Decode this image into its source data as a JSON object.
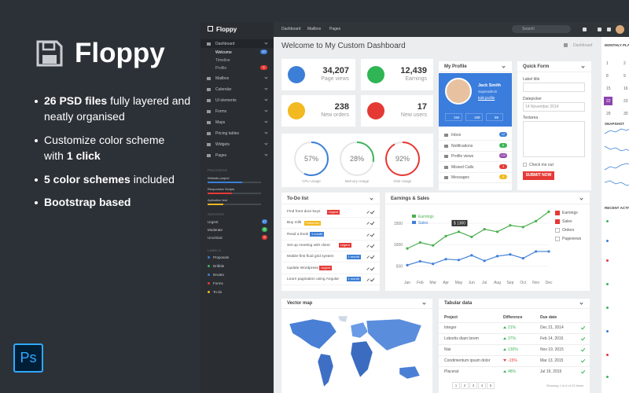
{
  "promo": {
    "brand": "Floppy",
    "bullets": [
      [
        {
          "strong": "26 PSD files"
        },
        {
          "text": "fully layered and neatly organised"
        }
      ],
      [
        {
          "text": "Customize color scheme with"
        },
        {
          "strong": "1 click"
        }
      ],
      [
        {
          "strong": "5 color schemes"
        },
        {
          "text": "included"
        }
      ],
      [
        {
          "strong": "Bootstrap based"
        }
      ]
    ],
    "app_badge": "Ps"
  },
  "topbar": {
    "brand": "Floppy",
    "nav": [
      "Dashboard",
      "Mailbox",
      "Pages"
    ],
    "search": "Search"
  },
  "sidebar": {
    "menu": [
      {
        "label": "Dashboard",
        "active": true,
        "children": [
          {
            "label": "Welcome",
            "badge": "10",
            "badge_color": "#3c7fd6"
          },
          {
            "label": "Timeline"
          },
          {
            "label": "Profile",
            "badge": "5",
            "badge_color": "#e53935"
          }
        ]
      },
      {
        "label": "Mailbox"
      },
      {
        "label": "Calendar"
      },
      {
        "label": "UI elements"
      },
      {
        "label": "Forms"
      },
      {
        "label": "Maps"
      },
      {
        "label": "Pricing tables"
      },
      {
        "label": "Widgets"
      },
      {
        "label": "Pages"
      }
    ],
    "progress_title": "PROGRESS",
    "progress": [
      {
        "label": "Website project",
        "value": 65,
        "color": "#3c7fd6"
      },
      {
        "label": "Responsive Scripts",
        "value": 45,
        "color": "#e53935"
      },
      {
        "label": "Aplication test",
        "value": 30,
        "color": "#f3b920"
      }
    ],
    "servers_title": "SERVERS",
    "servers": [
      {
        "label": "Urgent",
        "badge": "17",
        "color": "#3c7fd6"
      },
      {
        "label": "Moderate",
        "badge": "5",
        "color": "#3cb55a"
      },
      {
        "label": "Uncritical",
        "badge": "9",
        "color": "#e53935"
      }
    ],
    "labels_title": "LABELS",
    "labels": [
      {
        "label": "Proposals",
        "color": "#3c7fd6"
      },
      {
        "label": "Dribble",
        "color": "#3cb55a"
      },
      {
        "label": "Envato",
        "color": "#3c7fd6"
      },
      {
        "label": "Forms",
        "color": "#e53935"
      },
      {
        "label": "To-do",
        "color": "#f3b920"
      }
    ]
  },
  "header": {
    "title": "Welcome to My Custom Dashboard",
    "breadcrumb": "Dashboard"
  },
  "stats": [
    {
      "value": "34,207",
      "label": "Page views",
      "color": "#3c7fd6"
    },
    {
      "value": "12,439",
      "label": "Earnings",
      "color": "#2fb553"
    },
    {
      "value": "238",
      "label": "New orders",
      "color": "#f3b920"
    },
    {
      "value": "17",
      "label": "New users",
      "color": "#e53935"
    }
  ],
  "gauges": [
    {
      "value": 57,
      "label": "57%",
      "name": "CPU Usage",
      "color": "#3c7fd6"
    },
    {
      "value": 28,
      "label": "28%",
      "name": "Memory Usage",
      "color": "#3cb55a"
    },
    {
      "value": 92,
      "label": "92%",
      "name": "Disk Usage",
      "color": "#e53935"
    }
  ],
  "profile": {
    "title": "My Profile",
    "name": "Jack Smith",
    "role": "Superadmin",
    "edit": "Edit profile",
    "counts": [
      "154",
      "189",
      "95"
    ],
    "menu": [
      {
        "label": "Inbox",
        "badge": "12",
        "color": "#3c7fd6"
      },
      {
        "label": "Notifications",
        "badge": "8",
        "color": "#3cb55a"
      },
      {
        "label": "Profile views",
        "badge": "120",
        "color": "#8e44ad"
      },
      {
        "label": "Missed Calls",
        "badge": "3",
        "color": "#e53935"
      },
      {
        "label": "Messages",
        "badge": "6",
        "color": "#f3b920"
      }
    ]
  },
  "quick_form": {
    "title": "Quick Form",
    "label_title": "Label title",
    "datepicker": "Datepicker",
    "date": "14 November 2014",
    "textarea": "Textarea",
    "check": "Check me out",
    "submit": "SUBMIT NOW"
  },
  "todo": {
    "title": "To-Do list",
    "items": [
      {
        "text": "Find front door keys",
        "tag": "Urgent",
        "color": "#e53935"
      },
      {
        "text": "Buy milk",
        "tag": "Tomorrow",
        "color": "#f3b920"
      },
      {
        "text": "Read a book",
        "tag": "1 month",
        "color": "#3c7fd6"
      },
      {
        "text": "Set up meeting with client",
        "tag": "Urgent",
        "color": "#e53935"
      },
      {
        "text": "Mobile-first fluid grid system",
        "tag": "1 month",
        "color": "#3c7fd6"
      },
      {
        "text": "Update Wordpress",
        "tag": "Urgent",
        "color": "#e53935"
      },
      {
        "text": "Learn pagination using Angular",
        "tag": "1 month",
        "color": "#3c7fd6"
      }
    ]
  },
  "chart_data": {
    "type": "line",
    "title": "Earnings & Sales",
    "categories": [
      "Jan",
      "Feb",
      "Mar",
      "Apr",
      "May",
      "Jun",
      "Jul",
      "Aug",
      "Sep",
      "Oct",
      "Nov",
      "Dec"
    ],
    "series": [
      {
        "name": "Earnings",
        "color": "#4caf50",
        "values": [
          910,
          1050,
          980,
          1200,
          1300,
          1180,
          1360,
          1300,
          1450,
          1410,
          1550,
          1770
        ]
      },
      {
        "name": "Sales",
        "color": "#3f7fd8",
        "values": [
          520,
          610,
          550,
          660,
          640,
          750,
          620,
          730,
          770,
          680,
          840,
          840
        ]
      }
    ],
    "tooltip": {
      "series": 0,
      "index": 4,
      "label": "$ 1300"
    },
    "ylim": [
      250,
      1850
    ],
    "yticks": [
      500,
      1000,
      1500
    ],
    "grid": true,
    "filters": [
      {
        "label": "Earnings",
        "checked": true
      },
      {
        "label": "Sales",
        "checked": true
      },
      {
        "label": "Orders",
        "checked": false
      },
      {
        "label": "Pageviews",
        "checked": false
      }
    ]
  },
  "vector_map": {
    "title": "Vector map"
  },
  "table": {
    "title": "Tabular data",
    "columns": [
      "Project",
      "Difference",
      "Due date"
    ],
    "rows": [
      [
        "Integer",
        "21%",
        "Dec 21, 2014"
      ],
      [
        "Lobortis diam lorem",
        "37%",
        "Feb 14, 2015"
      ],
      [
        "Nisi",
        "130%",
        "Nov 19, 2015"
      ],
      [
        "Condimentum ipsum dolor",
        "-15%",
        "Mar 13, 2015"
      ],
      [
        "Placerat",
        "48%",
        "Jul 19, 2015"
      ]
    ],
    "pages": [
      "1",
      "2",
      "3",
      "4",
      "5"
    ],
    "footer": "Showing 1 to 5 of 23 items"
  },
  "right_panel": {
    "monthly": "MONTHLY PLAN",
    "days": [
      "1",
      "2",
      "8",
      "9",
      "15",
      "16",
      "22",
      "23",
      "29",
      "30"
    ],
    "snapshot": "SNAPSHOT",
    "sparks": [
      [
        3,
        5,
        4,
        6,
        5,
        7
      ],
      [
        6,
        4,
        5,
        3,
        4,
        2
      ],
      [
        2,
        4,
        3,
        5,
        6,
        5
      ],
      [
        5,
        6,
        4,
        5,
        3,
        4
      ]
    ],
    "activity": "RECENT ACTIVITY"
  }
}
